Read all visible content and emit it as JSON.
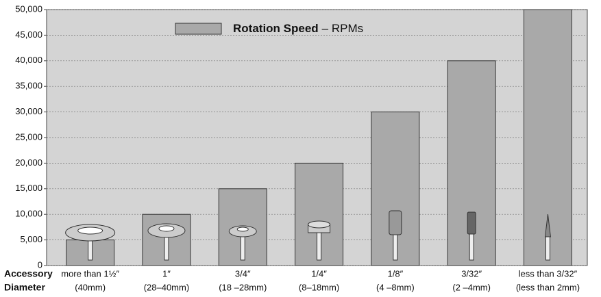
{
  "chart_data": {
    "type": "bar",
    "categories": [
      "more than 1½″",
      "1″",
      "3/4″",
      "1/4″",
      "1/8″",
      "3/32″",
      "less than 3/32″"
    ],
    "x_sublabels": [
      "(40mm)",
      "(28–40mm)",
      "(18 –28mm)",
      "(8–18mm)",
      "(4 –8mm)",
      "(2 –4mm)",
      "(less than 2mm)"
    ],
    "xlabel_lines": [
      "Accessory",
      "Diameter"
    ],
    "series": [
      {
        "name": "Rotation Speed",
        "name_suffix": "– RPMs",
        "color": "#a9a9a9",
        "values": [
          5000,
          10000,
          15000,
          20000,
          30000,
          40000,
          50000
        ]
      }
    ],
    "ylim": [
      0,
      50000
    ],
    "yticks": [
      0,
      {
        "value": 5000,
        "label": "5,000"
      },
      {
        "value": 10000,
        "label": "10,000"
      },
      {
        "value": 15000,
        "label": "15,000"
      },
      {
        "value": 20000,
        "label": "20,000"
      },
      {
        "value": 25000,
        "label": "25,000"
      },
      {
        "value": 30000,
        "label": "30,000"
      },
      {
        "value": 35000,
        "label": "35,000"
      },
      {
        "value": 40000,
        "label": "40,000"
      },
      {
        "value": 45000,
        "label": "45,000"
      },
      {
        "value": 50000,
        "label": "50,000"
      }
    ],
    "grid": true
  }
}
